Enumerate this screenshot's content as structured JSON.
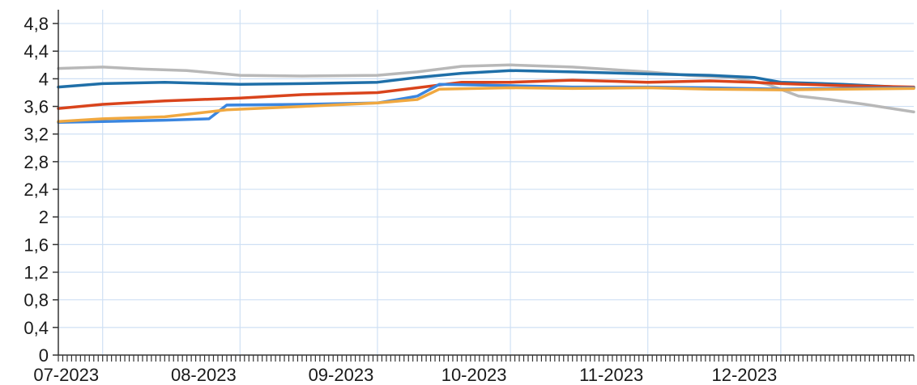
{
  "chart_data": {
    "type": "line",
    "title": "",
    "xlabel": "",
    "ylabel": "",
    "grid": true,
    "legend": "none",
    "xlim": [
      "2023-07-01",
      "2023-12-31"
    ],
    "ylim": [
      0,
      5
    ],
    "yticks": [
      0,
      0.4,
      0.8,
      1.2,
      1.6,
      2,
      2.4,
      2.8,
      3.2,
      3.6,
      4,
      4.4,
      4.8
    ],
    "ytick_labels": [
      "0",
      "0,4",
      "0,8",
      "1,2",
      "1,6",
      "2",
      "2,4",
      "2,8",
      "3,2",
      "3,6",
      "4",
      "4,4",
      "4,8"
    ],
    "xticks": [
      "2023-07-01",
      "2023-08-01",
      "2023-09-01",
      "2023-10-01",
      "2023-11-01",
      "2023-12-01"
    ],
    "xtick_labels": [
      "07-2023",
      "08-2023",
      "09-2023",
      "10-2023",
      "11-2023",
      "12-2023"
    ],
    "series": [
      {
        "color": "#b8b8b8",
        "points": [
          [
            "2023-06-21",
            4.15
          ],
          [
            "2023-07-01",
            4.17
          ],
          [
            "2023-07-10",
            4.14
          ],
          [
            "2023-07-20",
            4.12
          ],
          [
            "2023-08-01",
            4.05
          ],
          [
            "2023-08-15",
            4.04
          ],
          [
            "2023-09-01",
            4.05
          ],
          [
            "2023-09-10",
            4.1
          ],
          [
            "2023-09-20",
            4.18
          ],
          [
            "2023-10-01",
            4.2
          ],
          [
            "2023-10-15",
            4.17
          ],
          [
            "2023-11-01",
            4.1
          ],
          [
            "2023-11-10",
            4.05
          ],
          [
            "2023-11-20",
            4.02
          ],
          [
            "2023-11-28",
            3.92
          ],
          [
            "2023-12-05",
            3.75
          ],
          [
            "2023-12-12",
            3.7
          ],
          [
            "2023-12-20",
            3.63
          ],
          [
            "2023-12-31",
            3.52
          ]
        ]
      },
      {
        "color": "#1f6fa8",
        "points": [
          [
            "2023-06-21",
            3.88
          ],
          [
            "2023-07-01",
            3.93
          ],
          [
            "2023-07-15",
            3.95
          ],
          [
            "2023-08-01",
            3.92
          ],
          [
            "2023-08-15",
            3.93
          ],
          [
            "2023-09-01",
            3.95
          ],
          [
            "2023-09-10",
            4.02
          ],
          [
            "2023-09-20",
            4.08
          ],
          [
            "2023-10-01",
            4.12
          ],
          [
            "2023-10-15",
            4.1
          ],
          [
            "2023-11-01",
            4.07
          ],
          [
            "2023-11-15",
            4.05
          ],
          [
            "2023-11-25",
            4.02
          ],
          [
            "2023-12-01",
            3.95
          ],
          [
            "2023-12-15",
            3.92
          ],
          [
            "2023-12-31",
            3.87
          ]
        ]
      },
      {
        "color": "#d9441c",
        "points": [
          [
            "2023-06-21",
            3.57
          ],
          [
            "2023-07-01",
            3.63
          ],
          [
            "2023-07-15",
            3.68
          ],
          [
            "2023-08-01",
            3.72
          ],
          [
            "2023-08-15",
            3.77
          ],
          [
            "2023-09-01",
            3.8
          ],
          [
            "2023-09-10",
            3.87
          ],
          [
            "2023-09-20",
            3.95
          ],
          [
            "2023-10-01",
            3.95
          ],
          [
            "2023-10-15",
            3.98
          ],
          [
            "2023-11-01",
            3.95
          ],
          [
            "2023-11-15",
            3.97
          ],
          [
            "2023-11-25",
            3.95
          ],
          [
            "2023-12-01",
            3.93
          ],
          [
            "2023-12-15",
            3.9
          ],
          [
            "2023-12-31",
            3.88
          ]
        ]
      },
      {
        "color": "#3a86e0",
        "points": [
          [
            "2023-06-21",
            3.37
          ],
          [
            "2023-07-01",
            3.38
          ],
          [
            "2023-07-15",
            3.4
          ],
          [
            "2023-07-25",
            3.42
          ],
          [
            "2023-07-29",
            3.62
          ],
          [
            "2023-08-15",
            3.63
          ],
          [
            "2023-09-01",
            3.65
          ],
          [
            "2023-09-10",
            3.75
          ],
          [
            "2023-09-15",
            3.92
          ],
          [
            "2023-10-01",
            3.9
          ],
          [
            "2023-10-15",
            3.88
          ],
          [
            "2023-11-01",
            3.88
          ],
          [
            "2023-11-15",
            3.87
          ],
          [
            "2023-12-01",
            3.85
          ],
          [
            "2023-12-15",
            3.86
          ],
          [
            "2023-12-31",
            3.87
          ]
        ]
      },
      {
        "color": "#f0a840",
        "points": [
          [
            "2023-06-21",
            3.38
          ],
          [
            "2023-07-01",
            3.42
          ],
          [
            "2023-07-15",
            3.45
          ],
          [
            "2023-07-29",
            3.55
          ],
          [
            "2023-08-15",
            3.6
          ],
          [
            "2023-09-01",
            3.65
          ],
          [
            "2023-09-10",
            3.7
          ],
          [
            "2023-09-15",
            3.85
          ],
          [
            "2023-10-01",
            3.87
          ],
          [
            "2023-10-15",
            3.86
          ],
          [
            "2023-11-01",
            3.87
          ],
          [
            "2023-11-15",
            3.85
          ],
          [
            "2023-12-01",
            3.84
          ],
          [
            "2023-12-15",
            3.85
          ],
          [
            "2023-12-31",
            3.86
          ]
        ]
      }
    ]
  }
}
